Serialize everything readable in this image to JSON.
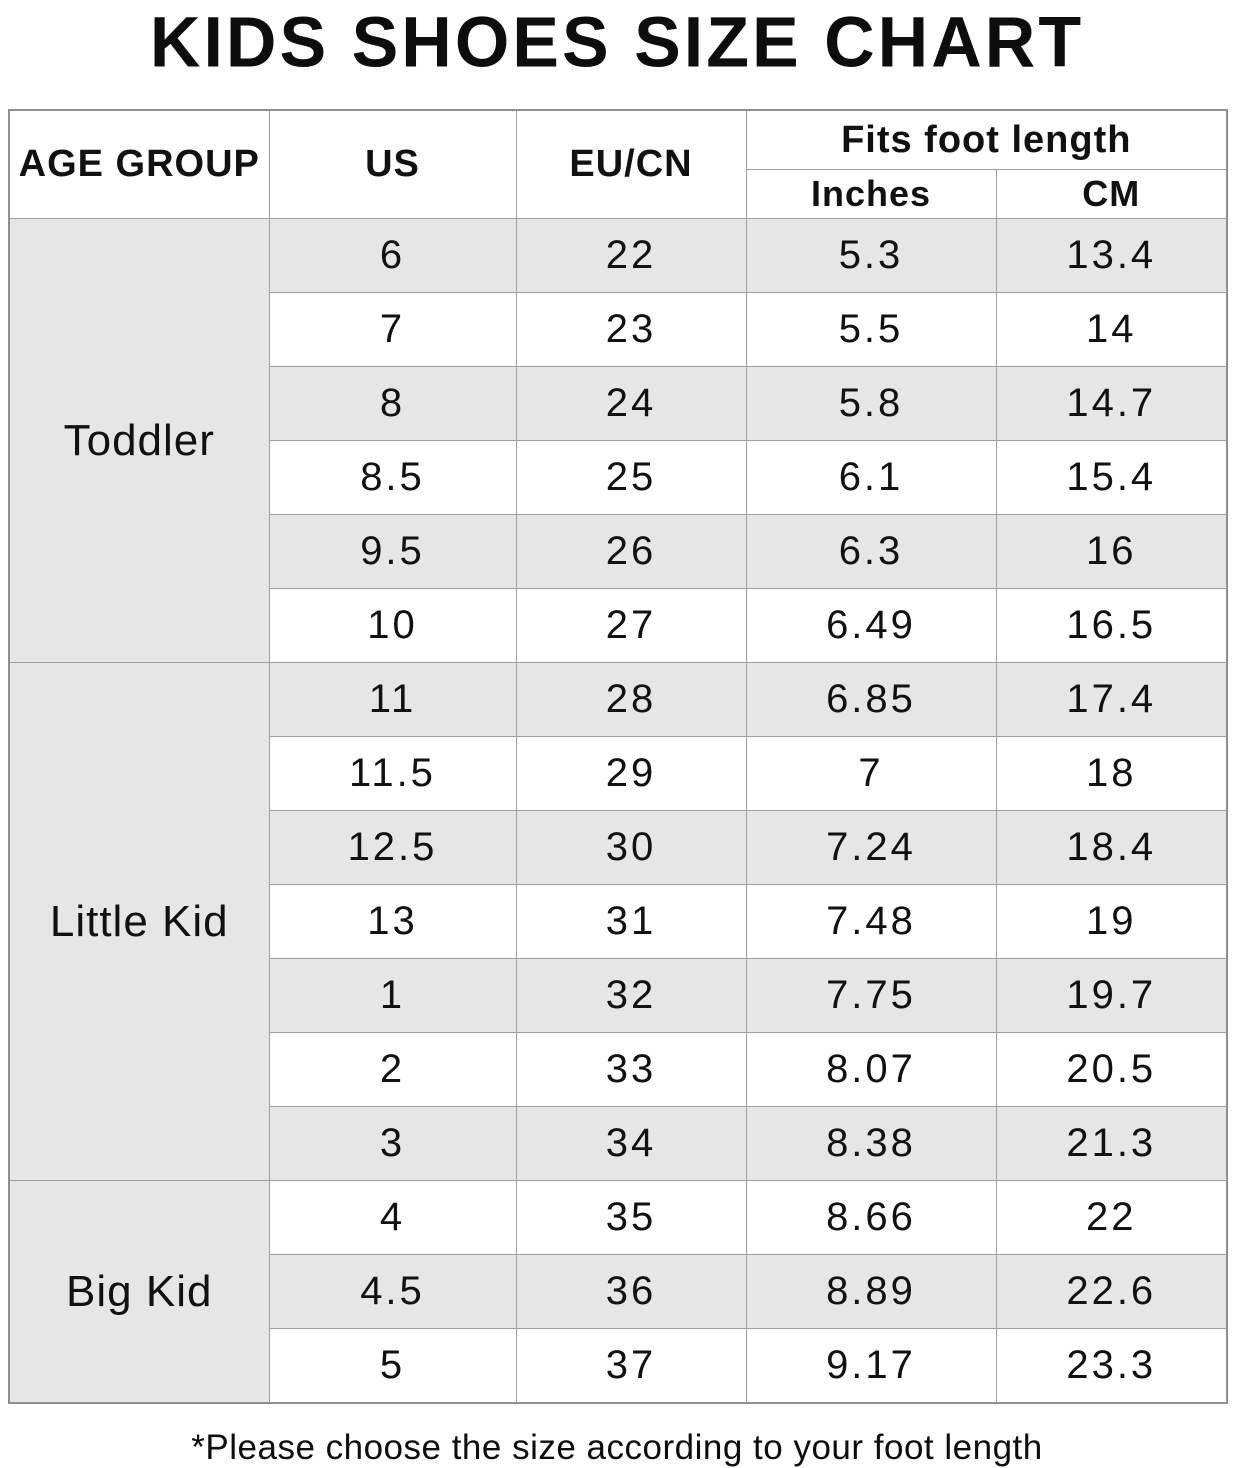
{
  "title": "KIDS SHOES SIZE CHART",
  "table": {
    "headers": {
      "age_group": "AGE GROUP",
      "us": "US",
      "eu_cn": "EU/CN",
      "fits": "Fits foot length",
      "inches": "Inches",
      "cm": "CM"
    },
    "groups": [
      {
        "label": "Toddler",
        "rows": [
          [
            "6",
            "22",
            "5.3",
            "13.4"
          ],
          [
            "7",
            "23",
            "5.5",
            "14"
          ],
          [
            "8",
            "24",
            "5.8",
            "14.7"
          ],
          [
            "8.5",
            "25",
            "6.1",
            "15.4"
          ],
          [
            "9.5",
            "26",
            "6.3",
            "16"
          ],
          [
            "10",
            "27",
            "6.49",
            "16.5"
          ]
        ]
      },
      {
        "label": "Little Kid",
        "rows": [
          [
            "11",
            "28",
            "6.85",
            "17.4"
          ],
          [
            "11.5",
            "29",
            "7",
            "18"
          ],
          [
            "12.5",
            "30",
            "7.24",
            "18.4"
          ],
          [
            "13",
            "31",
            "7.48",
            "19"
          ],
          [
            "1",
            "32",
            "7.75",
            "19.7"
          ],
          [
            "2",
            "33",
            "8.07",
            "20.5"
          ],
          [
            "3",
            "34",
            "8.38",
            "21.3"
          ]
        ]
      },
      {
        "label": "Big Kid",
        "rows": [
          [
            "4",
            "35",
            "8.66",
            "22"
          ],
          [
            "4.5",
            "36",
            "8.89",
            "22.6"
          ],
          [
            "5",
            "37",
            "9.17",
            "23.3"
          ]
        ]
      }
    ]
  },
  "footer": {
    "note": "*Please choose the size according to your foot length"
  },
  "colors": {
    "zebra": "#e6e6e6",
    "border": "#9e9e9e",
    "outer_border": "#8f8f8f",
    "text": "#111111"
  },
  "chart_data": {
    "type": "table",
    "title": "KIDS SHOES SIZE CHART",
    "columns": [
      "AGE GROUP",
      "US",
      "EU/CN",
      "Fits foot length (Inches)",
      "Fits foot length (CM)"
    ],
    "rows": [
      [
        "Toddler",
        "6",
        "22",
        "5.3",
        "13.4"
      ],
      [
        "Toddler",
        "7",
        "23",
        "5.5",
        "14"
      ],
      [
        "Toddler",
        "8",
        "24",
        "5.8",
        "14.7"
      ],
      [
        "Toddler",
        "8.5",
        "25",
        "6.1",
        "15.4"
      ],
      [
        "Toddler",
        "9.5",
        "26",
        "6.3",
        "16"
      ],
      [
        "Toddler",
        "10",
        "27",
        "6.49",
        "16.5"
      ],
      [
        "Little Kid",
        "11",
        "28",
        "6.85",
        "17.4"
      ],
      [
        "Little Kid",
        "11.5",
        "29",
        "7",
        "18"
      ],
      [
        "Little Kid",
        "12.5",
        "30",
        "7.24",
        "18.4"
      ],
      [
        "Little Kid",
        "13",
        "31",
        "7.48",
        "19"
      ],
      [
        "Little Kid",
        "1",
        "32",
        "7.75",
        "19.7"
      ],
      [
        "Little Kid",
        "2",
        "33",
        "8.07",
        "20.5"
      ],
      [
        "Little Kid",
        "3",
        "34",
        "8.38",
        "21.3"
      ],
      [
        "Big Kid",
        "4",
        "35",
        "8.66",
        "22"
      ],
      [
        "Big Kid",
        "4.5",
        "36",
        "8.89",
        "22.6"
      ],
      [
        "Big Kid",
        "5",
        "37",
        "9.17",
        "23.3"
      ]
    ],
    "footnote": "*Please choose the size according to your foot length",
    "layout": {
      "zebra_striping": true,
      "grouped_rowspan_column": "AGE GROUP"
    }
  }
}
